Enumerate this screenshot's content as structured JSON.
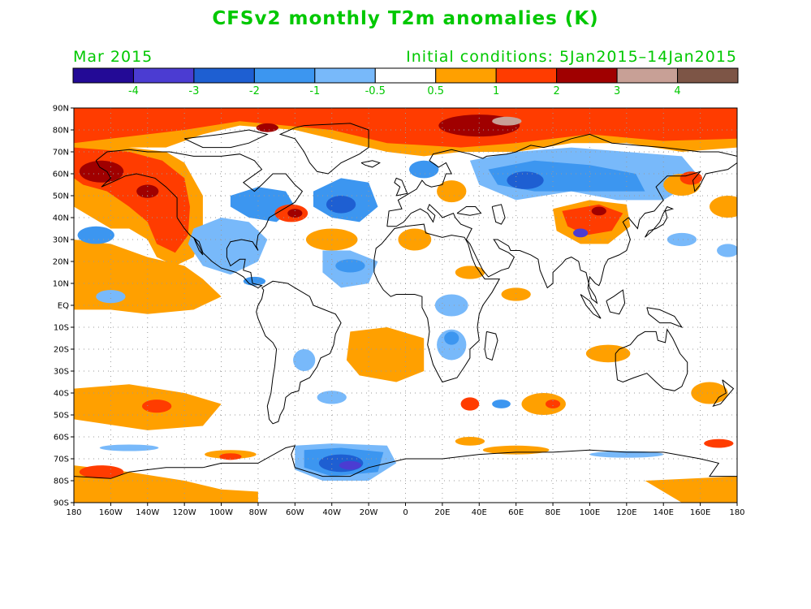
{
  "title": "CFSv2 monthly T2m anomalies (K)",
  "subtitle_left": "Mar 2015",
  "subtitle_right": "Initial conditions: 5Jan2015–14Jan2015",
  "colorbar": {
    "bins": [
      {
        "color": "#230a96"
      },
      {
        "color": "#4b3cd2"
      },
      {
        "color": "#1e5fd2"
      },
      {
        "color": "#3c96f0"
      },
      {
        "color": "#78b9fa"
      },
      {
        "color": "#ffffff"
      },
      {
        "color": "#ffa000"
      },
      {
        "color": "#ff3c00"
      },
      {
        "color": "#a00000"
      },
      {
        "color": "#c8a096"
      },
      {
        "color": "#7d5546"
      }
    ],
    "labels": [
      "-4",
      "-3",
      "-2",
      "-1",
      "-0.5",
      "0.5",
      "1",
      "2",
      "3",
      "4"
    ]
  },
  "axes": {
    "lat_labels": [
      "90N",
      "80N",
      "70N",
      "60N",
      "50N",
      "40N",
      "30N",
      "20N",
      "10N",
      "EQ",
      "10S",
      "20S",
      "30S",
      "40S",
      "50S",
      "60S",
      "70S",
      "80S",
      "90S"
    ],
    "lon_labels": [
      "180",
      "160W",
      "140W",
      "120W",
      "100W",
      "80W",
      "60W",
      "40W",
      "20W",
      "0",
      "20E",
      "40E",
      "60E",
      "80E",
      "100E",
      "120E",
      "140E",
      "160E",
      "180"
    ]
  },
  "map": {
    "projection": "equirectangular",
    "lon_range": [
      -180,
      180
    ],
    "lat_range": [
      -90,
      90
    ],
    "grid": "dotted",
    "anomaly_regions": [
      {
        "name": "arctic-warm",
        "level": "2",
        "color": "#ff3c00",
        "lon": [
          -180,
          180
        ],
        "lat": [
          72,
          90
        ]
      },
      {
        "name": "north-pacific-warm",
        "level": "2",
        "color": "#ff3c00",
        "lon": [
          -180,
          -115
        ],
        "lat": [
          25,
          72
        ]
      },
      {
        "name": "eastern-pacific-warm",
        "level": "1",
        "color": "#ffa000",
        "lon": [
          -180,
          -110
        ],
        "lat": [
          -3,
          28
        ]
      },
      {
        "name": "eastern-us-cold",
        "level": "-1",
        "color": "#3c96f0",
        "lon": [
          -115,
          -70
        ],
        "lat": [
          10,
          55
        ]
      },
      {
        "name": "north-atlantic-cold",
        "level": "-1",
        "color": "#3c96f0",
        "lon": [
          -55,
          -15
        ],
        "lat": [
          15,
          58
        ]
      },
      {
        "name": "siberia-cold",
        "level": "-1",
        "color": "#3c96f0",
        "lon": [
          40,
          150
        ],
        "lat": [
          40,
          68
        ]
      },
      {
        "name": "east-asia-warm",
        "level": "2",
        "color": "#ff3c00",
        "lon": [
          85,
          120
        ],
        "lat": [
          30,
          48
        ]
      },
      {
        "name": "south-atlantic-warm",
        "level": "1",
        "color": "#ffa000",
        "lon": [
          -30,
          10
        ],
        "lat": [
          -35,
          -10
        ]
      },
      {
        "name": "southern-ocean-warm",
        "level": "1",
        "color": "#ffa000",
        "lon": [
          -180,
          -100
        ],
        "lat": [
          -58,
          -38
        ]
      },
      {
        "name": "weddell-cold",
        "level": "-2",
        "color": "#1e5fd2",
        "lon": [
          -60,
          -10
        ],
        "lat": [
          -80,
          -64
        ]
      }
    ]
  }
}
